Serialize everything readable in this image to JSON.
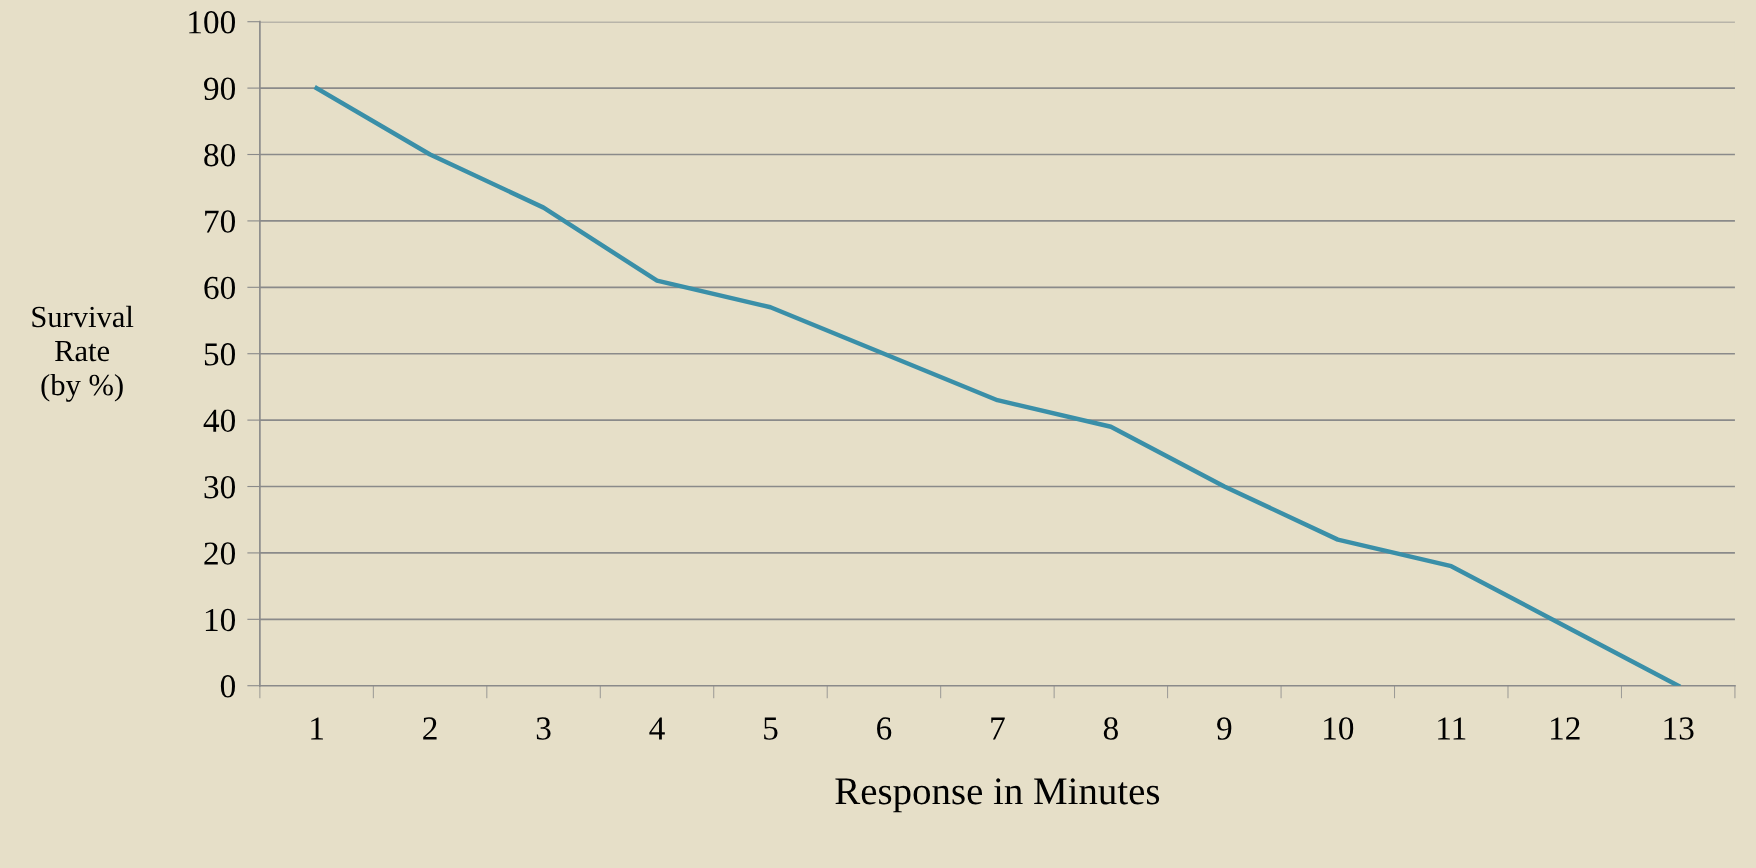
{
  "chart_data": {
    "type": "line",
    "xlabel": "Response in Minutes",
    "ylabel": "Survival\nRate\n(by %)",
    "categories": [
      "1",
      "2",
      "3",
      "4",
      "5",
      "6",
      "7",
      "8",
      "9",
      "10",
      "11",
      "12",
      "13"
    ],
    "series": [
      {
        "color": "#3a8fa8",
        "values": [
          90,
          80,
          72,
          61,
          57,
          50,
          43,
          39,
          30,
          22,
          18,
          9,
          0
        ]
      }
    ],
    "ylim": [
      0,
      100
    ],
    "yticks": [
      0,
      10,
      20,
      30,
      40,
      50,
      60,
      70,
      80,
      90,
      100
    ],
    "grid": "y",
    "marker": "none",
    "line_style": "solid"
  }
}
